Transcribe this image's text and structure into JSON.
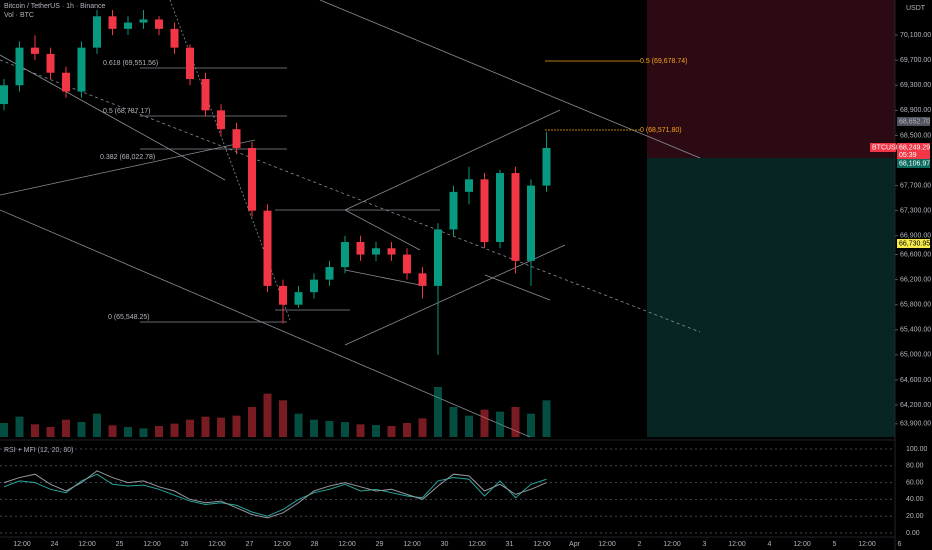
{
  "chart_data": {
    "type": "candlestick",
    "title": "Bitcoin / TetherUS · 1h · Binance",
    "currency": "USDT",
    "volume_label": "Vol · BTC",
    "up_color": "#089981",
    "down_color": "#f23645",
    "open": [
      69000,
      69300,
      69900,
      69800,
      69500,
      69200,
      69900,
      70400,
      70200,
      70300,
      70350,
      70200,
      69900,
      69400,
      68900,
      68600,
      68300,
      67300,
      66100,
      65800,
      66000,
      66200,
      66400,
      66800,
      66600,
      66700,
      66600,
      66300,
      66100,
      67000,
      67600,
      67800,
      66800,
      67900,
      66500,
      67700
    ],
    "high": [
      69400,
      70000,
      70100,
      69900,
      69600,
      70000,
      70500,
      70500,
      70400,
      70500,
      70400,
      70300,
      69950,
      69500,
      69000,
      68700,
      68400,
      67400,
      66200,
      66100,
      66300,
      66500,
      66900,
      66900,
      66800,
      66800,
      66700,
      66400,
      67100,
      67700,
      68000,
      67900,
      67950,
      68000,
      67800,
      68550
    ],
    "low": [
      68900,
      69200,
      69700,
      69400,
      69100,
      69100,
      69800,
      70100,
      70100,
      70200,
      70100,
      69800,
      69300,
      68800,
      68500,
      68200,
      67200,
      66000,
      65500,
      65750,
      65900,
      66100,
      66300,
      66500,
      66500,
      66500,
      66200,
      65900,
      65000,
      66900,
      67400,
      66700,
      66700,
      66300,
      66100,
      67600
    ],
    "close": [
      69300,
      69900,
      69800,
      69500,
      69200,
      69900,
      70400,
      70200,
      70300,
      70350,
      70200,
      69900,
      69400,
      68900,
      68600,
      68300,
      67300,
      66100,
      65800,
      66000,
      66200,
      66400,
      66800,
      66600,
      66700,
      66600,
      66300,
      66100,
      67000,
      67600,
      67800,
      66800,
      67900,
      66500,
      67700,
      68300
    ],
    "volume": [
      420,
      610,
      380,
      300,
      520,
      450,
      700,
      350,
      300,
      260,
      330,
      400,
      520,
      610,
      580,
      640,
      900,
      1300,
      1100,
      700,
      520,
      480,
      450,
      380,
      360,
      330,
      420,
      560,
      1500,
      900,
      640,
      820,
      760,
      900,
      700,
      1100
    ],
    "ylim": [
      63690,
      70660
    ],
    "yticks": [
      {
        "value": 70100,
        "label": "70,100.00"
      },
      {
        "value": 69700,
        "label": "69,700.00"
      },
      {
        "value": 69300,
        "label": "69,300.00"
      },
      {
        "value": 68900,
        "label": "68,900.00"
      },
      {
        "value": 68500,
        "label": "68,500.00"
      },
      {
        "value": 67700,
        "label": "67,700.00"
      },
      {
        "value": 67300,
        "label": "67,300.00"
      },
      {
        "value": 66900,
        "label": "66,900.00"
      },
      {
        "value": 66600,
        "label": "66,600.00"
      },
      {
        "value": 66200,
        "label": "66,200.00"
      },
      {
        "value": 65800,
        "label": "65,800.00"
      },
      {
        "value": 65400,
        "label": "65,400.00"
      },
      {
        "value": 65000,
        "label": "65,000.00"
      },
      {
        "value": 64600,
        "label": "64,600.00"
      },
      {
        "value": 64200,
        "label": "64,200.00"
      },
      {
        "value": 63900,
        "label": "63,900.00"
      }
    ],
    "time_labels": [
      "12:00",
      "24",
      "12:00",
      "25",
      "12:00",
      "26",
      "12:00",
      "27",
      "12:00",
      "28",
      "12:00",
      "29",
      "12:00",
      "30",
      "12:00",
      "31",
      "12:00",
      "Apr",
      "12:00",
      "2",
      "12:00",
      "3",
      "12:00",
      "4",
      "12:00",
      "5",
      "12:00",
      "6"
    ],
    "fib_labels": [
      "0.618 (69,551.56)",
      "0.5 (68,787.17)",
      "0.382 (68,022.78)",
      "0 (65,548.25)",
      "0.5 (69,678.74)",
      "0 (68,571.80)"
    ],
    "axis_tags": [
      "68,652.70",
      "BTCUSDT",
      "68,249.29",
      "05:39",
      "68,106.97",
      "66,730.95"
    ],
    "indicator": {
      "title": "RSI + MFI (12, 20, 80)",
      "ylim": [
        0,
        100
      ],
      "yticks": [
        {
          "value": 100,
          "label": "100.00"
        },
        {
          "value": 80,
          "label": "80.00"
        },
        {
          "value": 60,
          "label": "60.00"
        },
        {
          "value": 40,
          "label": "40.00"
        },
        {
          "value": 20,
          "label": "20.00"
        },
        {
          "value": 0,
          "label": "0.00"
        }
      ],
      "rsi_color": "#26a69a",
      "mfi_color": "#9598a1",
      "rsi_values": [
        55,
        62,
        60,
        52,
        48,
        62,
        70,
        58,
        56,
        57,
        52,
        45,
        38,
        34,
        36,
        33,
        25,
        20,
        28,
        40,
        48,
        52,
        58,
        50,
        52,
        48,
        44,
        42,
        62,
        66,
        64,
        44,
        62,
        42,
        58,
        64
      ],
      "mfi_values": [
        60,
        66,
        70,
        58,
        50,
        60,
        74,
        66,
        60,
        62,
        55,
        50,
        40,
        36,
        38,
        30,
        22,
        18,
        24,
        36,
        50,
        56,
        60,
        55,
        50,
        52,
        46,
        40,
        56,
        70,
        68,
        50,
        58,
        46,
        52,
        60
      ]
    }
  }
}
